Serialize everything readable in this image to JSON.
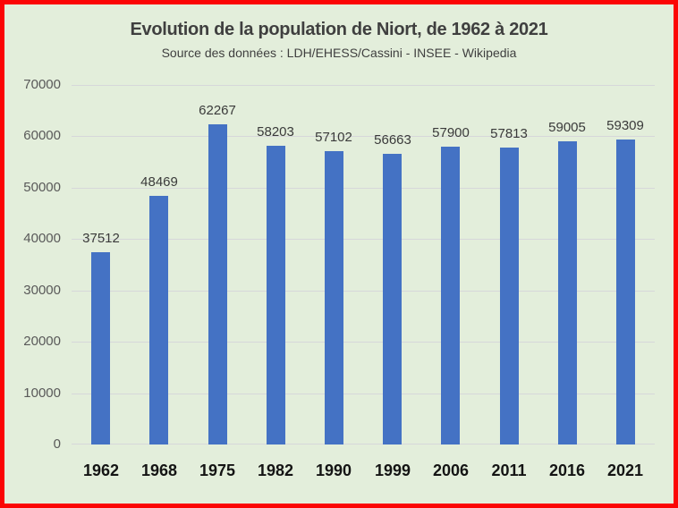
{
  "frame": {
    "border_color": "#fb0505",
    "background_color": "#e3eedb"
  },
  "chart_data": {
    "type": "bar",
    "title": "Evolution de la population de Niort, de 1962 à 2021",
    "subtitle": "Source des données :  LDH/EHESS/Cassini - INSEE - Wikipedia",
    "categories": [
      "1962",
      "1968",
      "1975",
      "1982",
      "1990",
      "1999",
      "2006",
      "2011",
      "2016",
      "2021"
    ],
    "values": [
      37512,
      48469,
      62267,
      58203,
      57102,
      56663,
      57900,
      57813,
      59005,
      59309
    ],
    "data_labels": [
      "37512",
      "48469",
      "62267",
      "58203",
      "57102",
      "56663",
      "57900",
      "57813",
      "59005",
      "59309"
    ],
    "xlabel": "",
    "ylabel": "",
    "ylim": [
      0,
      70000
    ],
    "yticks": [
      0,
      10000,
      20000,
      30000,
      40000,
      50000,
      60000,
      70000
    ],
    "ytick_labels": [
      "0",
      "10000",
      "20000",
      "30000",
      "40000",
      "50000",
      "60000",
      "70000"
    ],
    "grid": true,
    "legend": false,
    "bar_color": "#4472c4",
    "gridline_color": "#d6d7da"
  }
}
